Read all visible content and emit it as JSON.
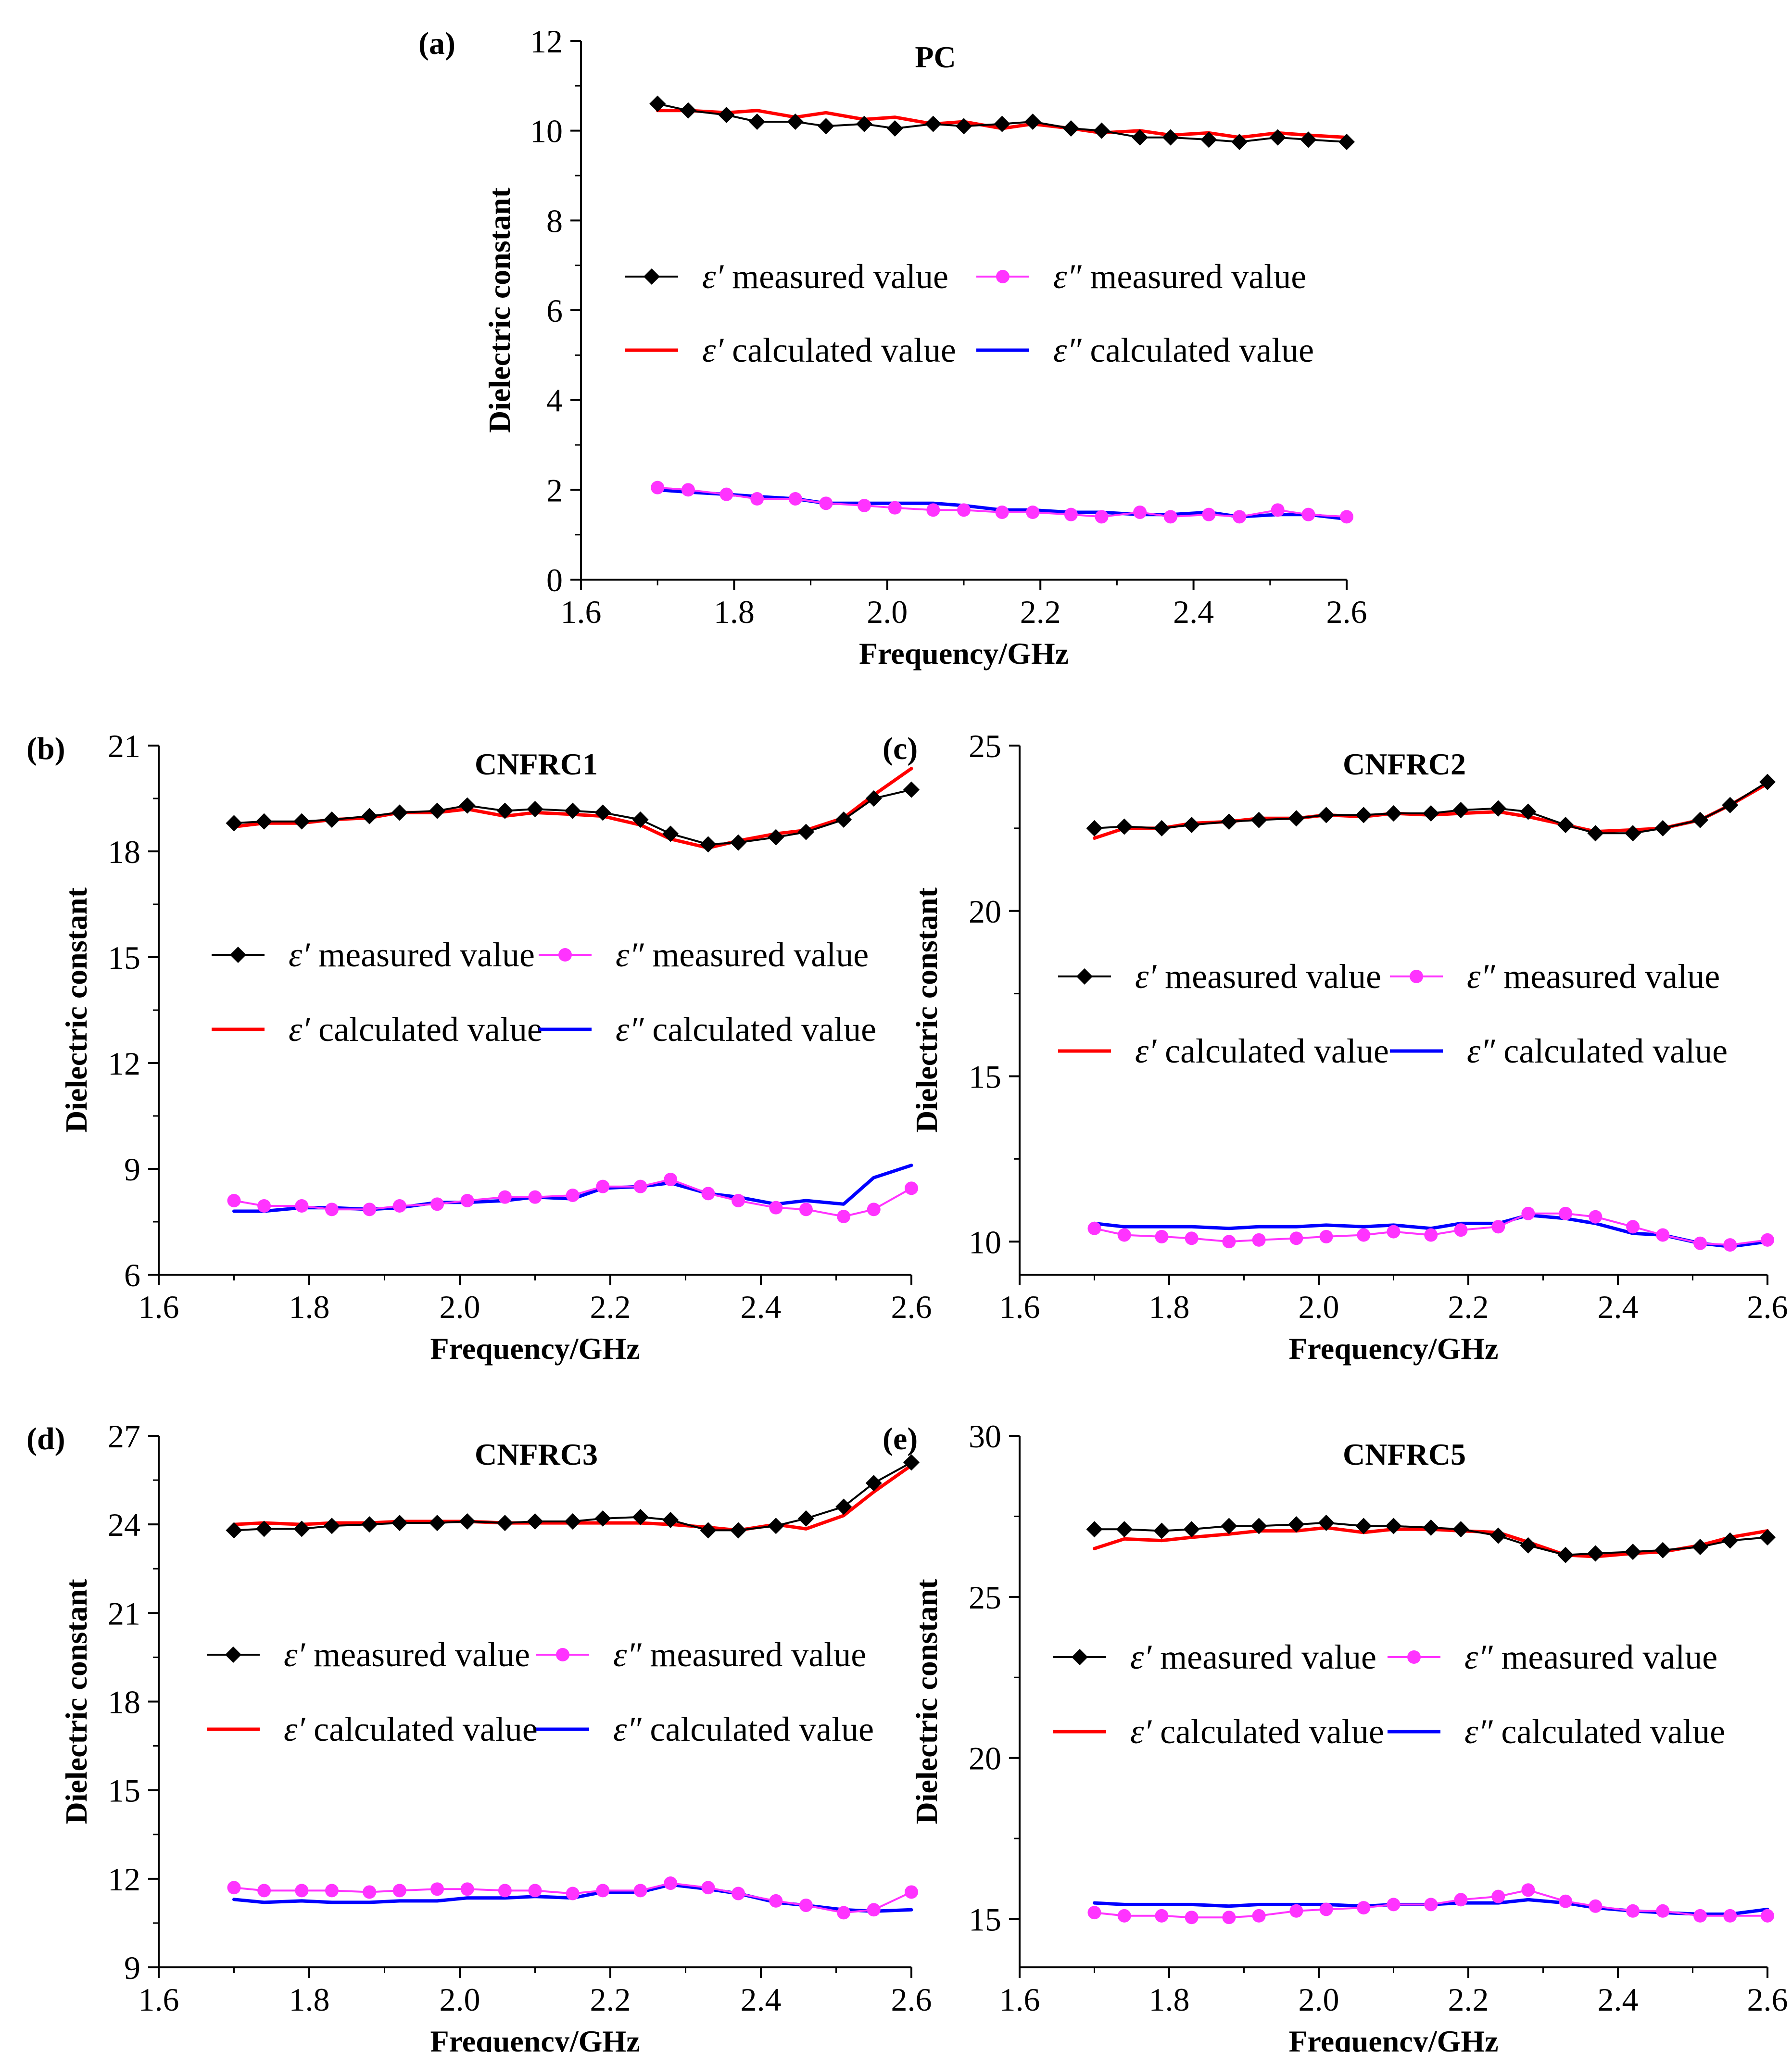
{
  "figure": {
    "series_legend": [
      {
        "key": "m1",
        "symbol": "ε′",
        "text": "measured value",
        "color": "#000000",
        "marker": "diamond"
      },
      {
        "key": "m2",
        "symbol": "ε″",
        "text": "measured value",
        "color": "#ff33ff",
        "marker": "circle"
      },
      {
        "key": "c1",
        "symbol": "ε′",
        "text": "calculated value",
        "color": "#ff0000",
        "marker": "none"
      },
      {
        "key": "c2",
        "symbol": "ε″",
        "text": "calculated value",
        "color": "#0000ff",
        "marker": "none"
      }
    ]
  },
  "chart_data": [
    {
      "panel": "(a)",
      "type": "line",
      "title": "PC",
      "xlabel": "Frequency/GHz",
      "ylabel": "Dielectric constant",
      "xlim": [
        1.6,
        2.6
      ],
      "ylim": [
        0,
        12
      ],
      "xticks": [
        "1.6",
        "1.8",
        "2.0",
        "2.2",
        "2.4",
        "2.6"
      ],
      "yticks": [
        "0",
        "2",
        "4",
        "6",
        "8",
        "10",
        "12"
      ],
      "x": [
        1.7,
        1.74,
        1.79,
        1.83,
        1.88,
        1.92,
        1.97,
        2.01,
        2.06,
        2.1,
        2.15,
        2.19,
        2.24,
        2.28,
        2.33,
        2.37,
        2.42,
        2.46,
        2.51,
        2.55,
        2.6
      ],
      "series": [
        {
          "name": "ε′ measured value",
          "values": [
            10.6,
            10.45,
            10.35,
            10.2,
            10.2,
            10.1,
            10.15,
            10.05,
            10.15,
            10.1,
            10.15,
            10.2,
            10.05,
            10.0,
            9.85,
            9.85,
            9.8,
            9.75,
            9.85,
            9.8,
            9.75
          ]
        },
        {
          "name": "ε″ measured value",
          "values": [
            2.05,
            2.0,
            1.9,
            1.8,
            1.8,
            1.7,
            1.65,
            1.6,
            1.55,
            1.55,
            1.5,
            1.5,
            1.45,
            1.4,
            1.5,
            1.4,
            1.45,
            1.4,
            1.55,
            1.45,
            1.4
          ]
        },
        {
          "name": "ε′ calculated value",
          "values": [
            10.45,
            10.45,
            10.4,
            10.45,
            10.3,
            10.4,
            10.25,
            10.3,
            10.15,
            10.2,
            10.05,
            10.15,
            10.05,
            9.95,
            10.0,
            9.9,
            9.95,
            9.85,
            9.95,
            9.9,
            9.85
          ]
        },
        {
          "name": "ε″ calculated value",
          "values": [
            2.0,
            1.95,
            1.9,
            1.85,
            1.8,
            1.7,
            1.7,
            1.7,
            1.7,
            1.65,
            1.55,
            1.55,
            1.5,
            1.5,
            1.45,
            1.45,
            1.5,
            1.4,
            1.45,
            1.45,
            1.35
          ]
        }
      ]
    },
    {
      "panel": "(b)",
      "type": "line",
      "title": "CNFRC1",
      "xlabel": "Frequency/GHz",
      "ylabel": "Dielectric constant",
      "xlim": [
        1.6,
        2.6
      ],
      "ylim": [
        6,
        21
      ],
      "xticks": [
        "1.6",
        "1.8",
        "2.0",
        "2.2",
        "2.4",
        "2.6"
      ],
      "yticks": [
        "6",
        "9",
        "12",
        "15",
        "18",
        "21"
      ],
      "x": [
        1.7,
        1.74,
        1.79,
        1.83,
        1.88,
        1.92,
        1.97,
        2.01,
        2.06,
        2.1,
        2.15,
        2.19,
        2.24,
        2.28,
        2.33,
        2.37,
        2.42,
        2.46,
        2.51,
        2.55,
        2.6
      ],
      "series": [
        {
          "name": "ε′ measured value",
          "values": [
            18.8,
            18.85,
            18.85,
            18.9,
            19.0,
            19.1,
            19.15,
            19.3,
            19.15,
            19.2,
            19.15,
            19.1,
            18.9,
            18.5,
            18.2,
            18.25,
            18.4,
            18.55,
            18.9,
            19.5,
            19.75
          ]
        },
        {
          "name": "ε″ measured value",
          "values": [
            8.1,
            7.95,
            7.95,
            7.85,
            7.85,
            7.95,
            8.0,
            8.1,
            8.2,
            8.2,
            8.25,
            8.5,
            8.5,
            8.7,
            8.3,
            8.1,
            7.9,
            7.85,
            7.65,
            7.85,
            8.45
          ]
        },
        {
          "name": "ε′ calculated value",
          "values": [
            18.7,
            18.8,
            18.8,
            18.9,
            18.95,
            19.1,
            19.1,
            19.2,
            19.0,
            19.1,
            19.05,
            19.0,
            18.75,
            18.35,
            18.1,
            18.3,
            18.5,
            18.6,
            18.95,
            19.6,
            20.35
          ]
        },
        {
          "name": "ε″ calculated value",
          "values": [
            7.8,
            7.8,
            7.9,
            7.9,
            7.85,
            7.9,
            8.05,
            8.05,
            8.1,
            8.2,
            8.15,
            8.45,
            8.5,
            8.6,
            8.3,
            8.2,
            8.0,
            8.1,
            8.0,
            8.75,
            9.1
          ]
        }
      ]
    },
    {
      "panel": "(c)",
      "type": "line",
      "title": "CNFRC2",
      "xlabel": "Frequency/GHz",
      "ylabel": "Dielectric constant",
      "xlim": [
        1.6,
        2.6
      ],
      "ylim": [
        9,
        25
      ],
      "xticks": [
        "1.6",
        "1.8",
        "2.0",
        "2.2",
        "2.4",
        "2.6"
      ],
      "yticks": [
        "10",
        "15",
        "20",
        "25"
      ],
      "x": [
        1.7,
        1.74,
        1.79,
        1.83,
        1.88,
        1.92,
        1.97,
        2.01,
        2.06,
        2.1,
        2.15,
        2.19,
        2.24,
        2.28,
        2.33,
        2.37,
        2.42,
        2.46,
        2.51,
        2.55,
        2.6
      ],
      "series": [
        {
          "name": "ε′ measured value",
          "values": [
            22.5,
            22.55,
            22.5,
            22.6,
            22.7,
            22.75,
            22.8,
            22.9,
            22.9,
            22.95,
            22.95,
            23.05,
            23.1,
            23.0,
            22.6,
            22.35,
            22.35,
            22.5,
            22.75,
            23.2,
            23.9
          ]
        },
        {
          "name": "ε″ measured value",
          "values": [
            10.4,
            10.2,
            10.15,
            10.1,
            10.0,
            10.05,
            10.1,
            10.15,
            10.2,
            10.3,
            10.2,
            10.35,
            10.45,
            10.85,
            10.85,
            10.75,
            10.45,
            10.2,
            9.95,
            9.9,
            10.05
          ]
        },
        {
          "name": "ε′ calculated value",
          "values": [
            22.2,
            22.5,
            22.5,
            22.65,
            22.7,
            22.8,
            22.8,
            22.9,
            22.85,
            22.95,
            22.9,
            22.95,
            23.0,
            22.85,
            22.6,
            22.4,
            22.45,
            22.5,
            22.75,
            23.2,
            23.85
          ]
        },
        {
          "name": "ε″ calculated value",
          "values": [
            10.55,
            10.45,
            10.45,
            10.45,
            10.4,
            10.45,
            10.45,
            10.5,
            10.45,
            10.5,
            10.4,
            10.55,
            10.55,
            10.8,
            10.7,
            10.55,
            10.25,
            10.2,
            9.95,
            9.85,
            10.0
          ]
        }
      ]
    },
    {
      "panel": "(d)",
      "type": "line",
      "title": "CNFRC3",
      "xlabel": "Frequency/GHz",
      "ylabel": "Dielectric constant",
      "xlim": [
        1.6,
        2.6
      ],
      "ylim": [
        9,
        27
      ],
      "xticks": [
        "1.6",
        "1.8",
        "2.0",
        "2.2",
        "2.4",
        "2.6"
      ],
      "yticks": [
        "9",
        "12",
        "15",
        "18",
        "21",
        "24",
        "27"
      ],
      "x": [
        1.7,
        1.74,
        1.79,
        1.83,
        1.88,
        1.92,
        1.97,
        2.01,
        2.06,
        2.1,
        2.15,
        2.19,
        2.24,
        2.28,
        2.33,
        2.37,
        2.42,
        2.46,
        2.51,
        2.55,
        2.6
      ],
      "series": [
        {
          "name": "ε′ measured value",
          "values": [
            23.8,
            23.85,
            23.85,
            23.95,
            24.0,
            24.05,
            24.05,
            24.1,
            24.05,
            24.1,
            24.1,
            24.2,
            24.25,
            24.15,
            23.8,
            23.8,
            23.95,
            24.2,
            24.6,
            25.4,
            26.1
          ]
        },
        {
          "name": "ε″ measured value",
          "values": [
            11.7,
            11.6,
            11.6,
            11.6,
            11.55,
            11.6,
            11.65,
            11.65,
            11.6,
            11.6,
            11.5,
            11.6,
            11.6,
            11.85,
            11.7,
            11.5,
            11.25,
            11.1,
            10.85,
            10.95,
            11.55
          ]
        },
        {
          "name": "ε′ calculated value",
          "values": [
            24.0,
            24.05,
            24.0,
            24.05,
            24.05,
            24.1,
            24.1,
            24.1,
            24.05,
            24.05,
            24.05,
            24.05,
            24.05,
            24.0,
            23.9,
            23.8,
            24.0,
            23.85,
            24.3,
            25.1,
            26.0
          ]
        },
        {
          "name": "ε″ calculated value",
          "values": [
            11.3,
            11.2,
            11.25,
            11.2,
            11.2,
            11.25,
            11.25,
            11.35,
            11.35,
            11.4,
            11.35,
            11.55,
            11.55,
            11.8,
            11.65,
            11.5,
            11.2,
            11.1,
            10.95,
            10.9,
            10.95
          ]
        }
      ]
    },
    {
      "panel": "(e)",
      "type": "line",
      "title": "CNFRC5",
      "xlabel": "Frequency/GHz",
      "ylabel": "Dielectric constant",
      "xlim": [
        1.6,
        2.6
      ],
      "ylim": [
        13.5,
        30
      ],
      "xticks": [
        "1.6",
        "1.8",
        "2.0",
        "2.2",
        "2.4",
        "2.6"
      ],
      "yticks": [
        "15",
        "20",
        "25",
        "30"
      ],
      "x": [
        1.7,
        1.74,
        1.79,
        1.83,
        1.88,
        1.92,
        1.97,
        2.01,
        2.06,
        2.1,
        2.15,
        2.19,
        2.24,
        2.28,
        2.33,
        2.37,
        2.42,
        2.46,
        2.51,
        2.55,
        2.6
      ],
      "series": [
        {
          "name": "ε′ measured value",
          "values": [
            27.1,
            27.1,
            27.05,
            27.1,
            27.2,
            27.2,
            27.25,
            27.3,
            27.2,
            27.2,
            27.15,
            27.1,
            26.9,
            26.6,
            26.3,
            26.35,
            26.4,
            26.45,
            26.55,
            26.75,
            26.85
          ]
        },
        {
          "name": "ε″ measured value",
          "values": [
            15.2,
            15.1,
            15.1,
            15.05,
            15.05,
            15.1,
            15.25,
            15.3,
            15.35,
            15.45,
            15.45,
            15.6,
            15.7,
            15.9,
            15.55,
            15.4,
            15.25,
            15.25,
            15.1,
            15.1,
            15.1
          ]
        },
        {
          "name": "ε′ calculated value",
          "values": [
            26.5,
            26.8,
            26.75,
            26.85,
            26.95,
            27.05,
            27.05,
            27.15,
            27.0,
            27.1,
            27.1,
            27.05,
            27.0,
            26.7,
            26.3,
            26.25,
            26.35,
            26.4,
            26.6,
            26.85,
            27.05
          ]
        },
        {
          "name": "ε″ calculated value",
          "values": [
            15.5,
            15.45,
            15.45,
            15.45,
            15.4,
            15.45,
            15.45,
            15.45,
            15.4,
            15.45,
            15.45,
            15.5,
            15.5,
            15.6,
            15.5,
            15.35,
            15.25,
            15.2,
            15.15,
            15.15,
            15.3
          ]
        }
      ]
    }
  ]
}
